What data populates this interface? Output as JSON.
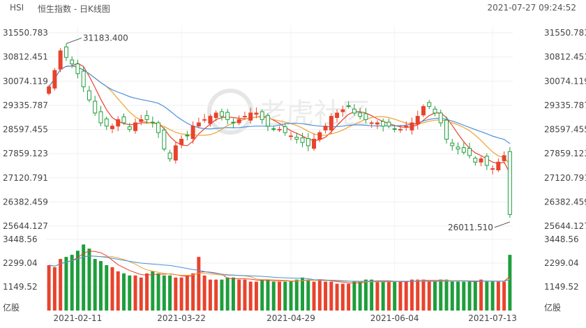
{
  "header": {
    "symbol": "HSI",
    "title": "恒生指数 - 日K线图",
    "timestamp": "2021-07-27 09:24:52"
  },
  "watermark": "老虎社区",
  "colors": {
    "up": "#e8432d",
    "down": "#1e9e3c",
    "ma5": "#e8432d",
    "ma10": "#f0a030",
    "ma20": "#4a90d9"
  },
  "chart_data": [
    {
      "type": "candlestick",
      "title": "",
      "y_ticks": [
        "31550.783",
        "30812.451",
        "30074.119",
        "29335.787",
        "28597.455",
        "27859.123",
        "27120.791",
        "26382.459",
        "25644.127"
      ],
      "ylim": [
        25644.127,
        31550.783
      ],
      "x_ticks": [
        "2021-02-11",
        "2021-03-22",
        "2021-04-29",
        "2021-06-04",
        "2021-07-13"
      ],
      "annotations": [
        {
          "label": "31183.400",
          "type": "period-high"
        },
        {
          "label": "26011.510",
          "type": "period-low"
        }
      ],
      "series": [
        {
          "name": "price",
          "close": [
            29900,
            30400,
            31000,
            30800,
            30600,
            30300,
            29900,
            29500,
            29100,
            28800,
            28700,
            28700,
            28900,
            28800,
            28600,
            28800,
            28900,
            28900,
            28800,
            28500,
            28000,
            27700,
            28100,
            28300,
            28400,
            28700,
            28800,
            28900,
            29000,
            29100,
            29000,
            28900,
            28800,
            28900,
            29000,
            29100,
            29100,
            28900,
            28700,
            28600,
            28600,
            28500,
            28400,
            28300,
            28200,
            28100,
            28300,
            28500,
            28700,
            29000,
            29100,
            29200,
            29300,
            29100,
            29000,
            28900,
            28800,
            28800,
            28700,
            28700,
            28600,
            28600,
            28700,
            28800,
            29000,
            29300,
            29300,
            29100,
            28800,
            28300,
            28100,
            28000,
            27900,
            27800,
            27600,
            27700,
            27500,
            27400,
            27600,
            27800,
            26000
          ]
        }
      ]
    },
    {
      "type": "bar",
      "title": "",
      "y_ticks": [
        "3448.56",
        "2299.04",
        "1149.52"
      ],
      "unit_label": "亿股",
      "ylim": [
        0,
        3448.56
      ],
      "series": [
        {
          "name": "volume",
          "values": [
            2200,
            2100,
            2500,
            2600,
            2700,
            2900,
            3200,
            3000,
            2500,
            2400,
            2200,
            2100,
            1900,
            1800,
            1700,
            1700,
            1600,
            1800,
            1900,
            1800,
            1700,
            1700,
            1600,
            1600,
            1700,
            1800,
            2600,
            1700,
            1500,
            1500,
            1500,
            1600,
            1600,
            1500,
            1500,
            1400,
            1400,
            1500,
            1500,
            1400,
            1400,
            1400,
            1400,
            1500,
            1600,
            1500,
            1400,
            1500,
            1400,
            1400,
            1300,
            1300,
            1300,
            1400,
            1400,
            1500,
            1500,
            1400,
            1400,
            1400,
            1400,
            1400,
            1400,
            1500,
            1500,
            1500,
            1400,
            1400,
            1500,
            1500,
            1400,
            1400,
            1400,
            1400,
            1400,
            1500,
            1400,
            1400,
            1400,
            1400,
            2700
          ]
        }
      ]
    }
  ]
}
